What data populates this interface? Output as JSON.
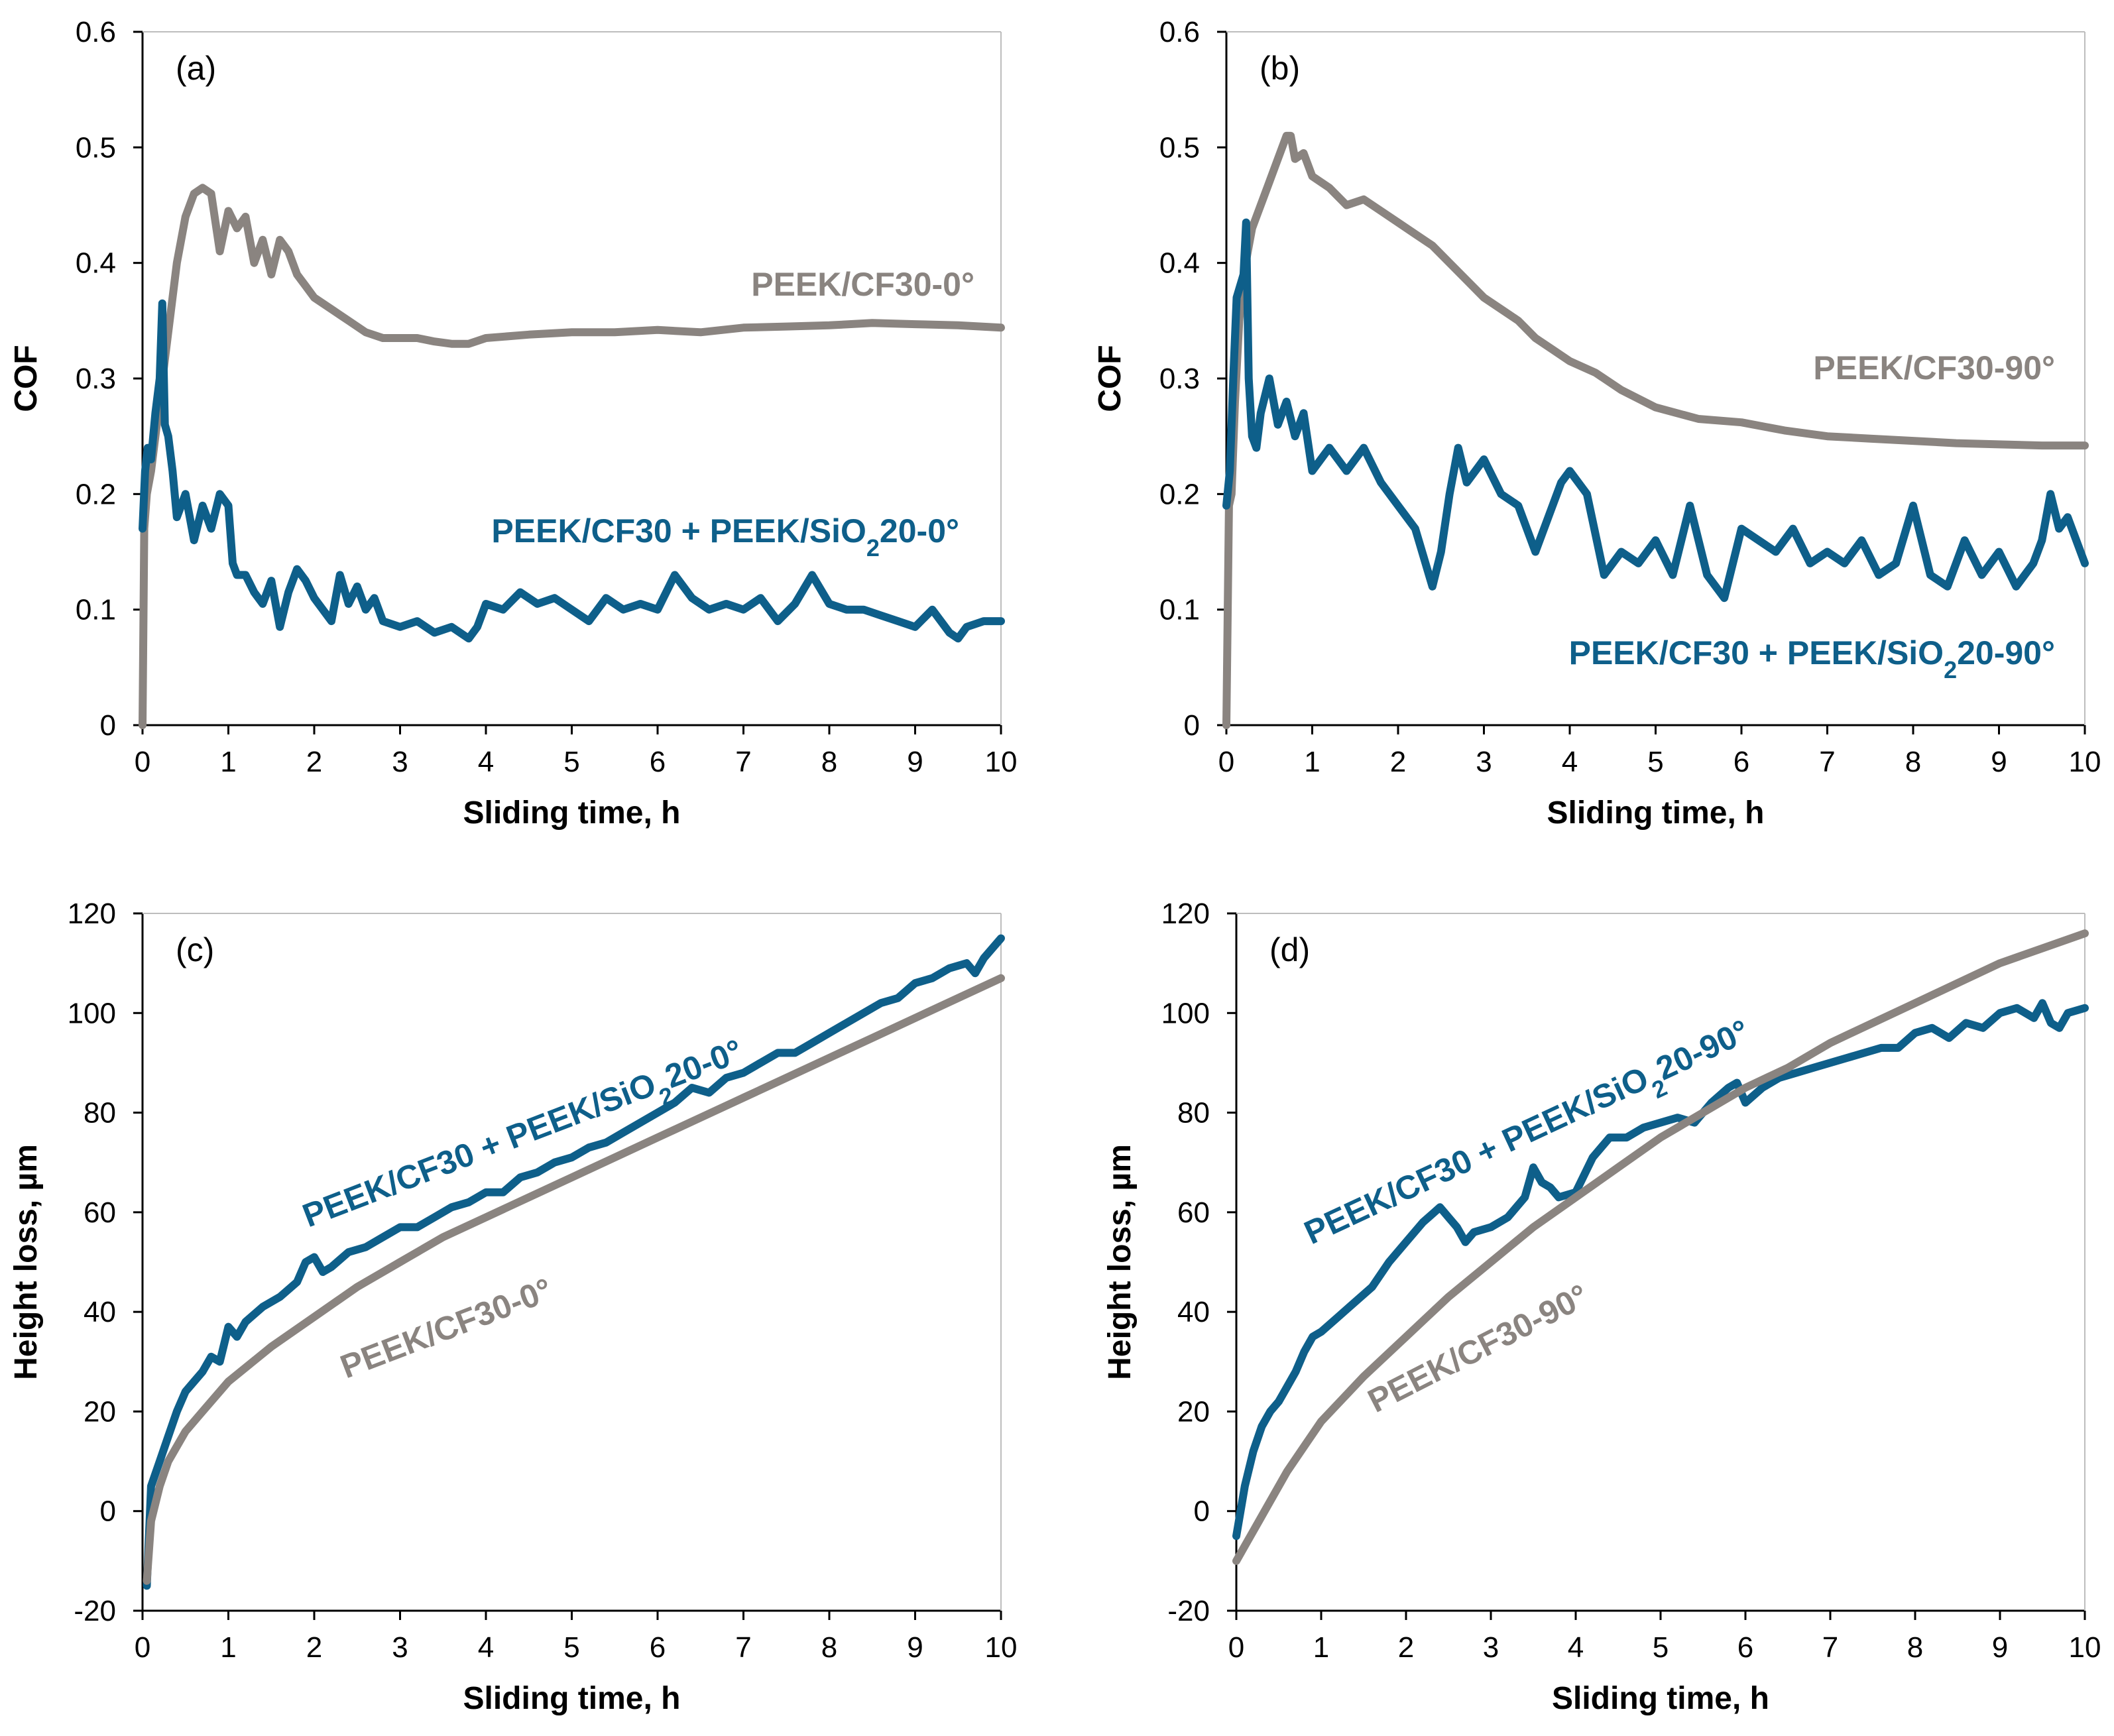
{
  "chart_data": [
    {
      "type": "line",
      "panel_label": "(a)",
      "xlabel": "Sliding time, h",
      "ylabel": "COF",
      "xlim": [
        0,
        10
      ],
      "ylim": [
        0,
        0.6
      ],
      "xticks": [
        0,
        1,
        2,
        3,
        4,
        5,
        6,
        7,
        8,
        9,
        10
      ],
      "yticks": [
        0,
        0.1,
        0.2,
        0.3,
        0.4,
        0.5,
        0.6
      ],
      "xtick_labels": [
        "0",
        "1",
        "2",
        "3",
        "4",
        "5",
        "6",
        "7",
        "8",
        "9",
        "10"
      ],
      "ytick_labels": [
        "0",
        "0.1",
        "0.2",
        "0.3",
        "0.4",
        "0.5",
        "0.6"
      ],
      "grid": false,
      "series": [
        {
          "name": "PEEK/CF30-0°",
          "label_parts": [
            {
              "text": "PEEK/CF30-0°"
            }
          ],
          "color": "#8a8480",
          "x": [
            0,
            0.02,
            0.05,
            0.1,
            0.15,
            0.2,
            0.3,
            0.4,
            0.5,
            0.6,
            0.7,
            0.8,
            0.9,
            1.0,
            1.1,
            1.2,
            1.3,
            1.4,
            1.5,
            1.6,
            1.7,
            1.8,
            1.9,
            2.0,
            2.2,
            2.4,
            2.6,
            2.8,
            3.0,
            3.2,
            3.4,
            3.6,
            3.8,
            4.0,
            4.5,
            5.0,
            5.5,
            6.0,
            6.5,
            7.0,
            7.5,
            8.0,
            8.5,
            9.0,
            9.5,
            10.0
          ],
          "y": [
            0.0,
            0.17,
            0.2,
            0.22,
            0.25,
            0.28,
            0.34,
            0.4,
            0.44,
            0.46,
            0.465,
            0.46,
            0.41,
            0.445,
            0.43,
            0.44,
            0.4,
            0.42,
            0.39,
            0.42,
            0.41,
            0.39,
            0.38,
            0.37,
            0.36,
            0.35,
            0.34,
            0.335,
            0.335,
            0.335,
            0.332,
            0.33,
            0.33,
            0.335,
            0.338,
            0.34,
            0.34,
            0.342,
            0.34,
            0.344,
            0.345,
            0.346,
            0.348,
            0.347,
            0.346,
            0.344
          ]
        },
        {
          "name": "PEEK/CF30 + PEEK/SiO2 20-0°",
          "label_parts": [
            {
              "text": "PEEK/CF30 + PEEK/SiO"
            },
            {
              "text": "2",
              "sub": true
            },
            {
              "text": "20-0°"
            }
          ],
          "color": "#0e5f8a",
          "x": [
            0,
            0.03,
            0.06,
            0.1,
            0.15,
            0.2,
            0.23,
            0.26,
            0.3,
            0.35,
            0.4,
            0.5,
            0.6,
            0.7,
            0.8,
            0.9,
            1.0,
            1.05,
            1.1,
            1.2,
            1.3,
            1.4,
            1.5,
            1.6,
            1.7,
            1.8,
            1.9,
            2.0,
            2.1,
            2.2,
            2.3,
            2.4,
            2.5,
            2.6,
            2.7,
            2.8,
            3.0,
            3.2,
            3.4,
            3.6,
            3.8,
            3.9,
            4.0,
            4.2,
            4.4,
            4.6,
            4.8,
            5.0,
            5.2,
            5.4,
            5.6,
            5.8,
            6.0,
            6.2,
            6.4,
            6.6,
            6.8,
            7.0,
            7.2,
            7.4,
            7.6,
            7.8,
            8.0,
            8.2,
            8.4,
            8.6,
            8.8,
            9.0,
            9.2,
            9.4,
            9.5,
            9.6,
            9.8,
            10.0
          ],
          "y": [
            0.17,
            0.22,
            0.24,
            0.23,
            0.27,
            0.3,
            0.365,
            0.26,
            0.25,
            0.22,
            0.18,
            0.2,
            0.16,
            0.19,
            0.17,
            0.2,
            0.19,
            0.14,
            0.13,
            0.13,
            0.115,
            0.105,
            0.125,
            0.085,
            0.115,
            0.135,
            0.125,
            0.11,
            0.1,
            0.09,
            0.13,
            0.105,
            0.12,
            0.1,
            0.11,
            0.09,
            0.085,
            0.09,
            0.08,
            0.085,
            0.075,
            0.085,
            0.105,
            0.1,
            0.115,
            0.105,
            0.11,
            0.1,
            0.09,
            0.11,
            0.1,
            0.105,
            0.1,
            0.13,
            0.11,
            0.1,
            0.105,
            0.1,
            0.11,
            0.09,
            0.105,
            0.13,
            0.105,
            0.1,
            0.1,
            0.095,
            0.09,
            0.085,
            0.1,
            0.08,
            0.075,
            0.085,
            0.09,
            0.09
          ]
        }
      ]
    },
    {
      "type": "line",
      "panel_label": "(b)",
      "xlabel": "Sliding time, h",
      "ylabel": "COF",
      "xlim": [
        0,
        10
      ],
      "ylim": [
        0,
        0.6
      ],
      "xticks": [
        0,
        1,
        2,
        3,
        4,
        5,
        6,
        7,
        8,
        9,
        10
      ],
      "yticks": [
        0,
        0.1,
        0.2,
        0.3,
        0.4,
        0.5,
        0.6
      ],
      "xtick_labels": [
        "0",
        "1",
        "2",
        "3",
        "4",
        "5",
        "6",
        "7",
        "8",
        "9",
        "10"
      ],
      "ytick_labels": [
        "0",
        "0.1",
        "0.2",
        "0.3",
        "0.4",
        "0.5",
        "0.6"
      ],
      "grid": false,
      "series": [
        {
          "name": "PEEK/CF30-90°",
          "label_parts": [
            {
              "text": "PEEK/CF30-90°"
            }
          ],
          "color": "#8a8480",
          "x": [
            0,
            0.03,
            0.06,
            0.1,
            0.15,
            0.2,
            0.3,
            0.4,
            0.5,
            0.6,
            0.7,
            0.75,
            0.8,
            0.9,
            1.0,
            1.2,
            1.4,
            1.6,
            1.8,
            2.0,
            2.2,
            2.4,
            2.6,
            2.8,
            3.0,
            3.2,
            3.4,
            3.6,
            3.8,
            4.0,
            4.3,
            4.6,
            5.0,
            5.5,
            6.0,
            6.5,
            7.0,
            7.5,
            8.0,
            8.5,
            9.0,
            9.5,
            10.0
          ],
          "y": [
            0.0,
            0.19,
            0.2,
            0.28,
            0.35,
            0.39,
            0.43,
            0.45,
            0.47,
            0.49,
            0.51,
            0.51,
            0.49,
            0.495,
            0.475,
            0.465,
            0.45,
            0.455,
            0.445,
            0.435,
            0.425,
            0.415,
            0.4,
            0.385,
            0.37,
            0.36,
            0.35,
            0.335,
            0.325,
            0.315,
            0.305,
            0.29,
            0.275,
            0.265,
            0.262,
            0.255,
            0.25,
            0.248,
            0.246,
            0.244,
            0.243,
            0.242,
            0.242
          ]
        },
        {
          "name": "PEEK/CF30 + PEEK/SiO2 20-90°",
          "label_parts": [
            {
              "text": "PEEK/CF30 + PEEK/SiO"
            },
            {
              "text": "2",
              "sub": true
            },
            {
              "text": "20-90°"
            }
          ],
          "color": "#0e5f8a",
          "x": [
            0,
            0.04,
            0.08,
            0.12,
            0.16,
            0.2,
            0.23,
            0.26,
            0.3,
            0.35,
            0.4,
            0.5,
            0.6,
            0.7,
            0.8,
            0.9,
            1.0,
            1.2,
            1.4,
            1.6,
            1.8,
            2.0,
            2.2,
            2.4,
            2.5,
            2.6,
            2.7,
            2.8,
            3.0,
            3.2,
            3.4,
            3.6,
            3.8,
            3.9,
            4.0,
            4.2,
            4.4,
            4.6,
            4.8,
            5.0,
            5.2,
            5.4,
            5.6,
            5.8,
            6.0,
            6.2,
            6.4,
            6.6,
            6.8,
            7.0,
            7.2,
            7.4,
            7.6,
            7.8,
            8.0,
            8.2,
            8.4,
            8.6,
            8.8,
            9.0,
            9.2,
            9.4,
            9.5,
            9.6,
            9.7,
            9.8,
            10.0
          ],
          "y": [
            0.19,
            0.22,
            0.3,
            0.37,
            0.38,
            0.39,
            0.435,
            0.3,
            0.25,
            0.24,
            0.27,
            0.3,
            0.26,
            0.28,
            0.25,
            0.27,
            0.22,
            0.24,
            0.22,
            0.24,
            0.21,
            0.19,
            0.17,
            0.12,
            0.15,
            0.2,
            0.24,
            0.21,
            0.23,
            0.2,
            0.19,
            0.15,
            0.19,
            0.21,
            0.22,
            0.2,
            0.13,
            0.15,
            0.14,
            0.16,
            0.13,
            0.19,
            0.13,
            0.11,
            0.17,
            0.16,
            0.15,
            0.17,
            0.14,
            0.15,
            0.14,
            0.16,
            0.13,
            0.14,
            0.19,
            0.13,
            0.12,
            0.16,
            0.13,
            0.15,
            0.12,
            0.14,
            0.16,
            0.2,
            0.17,
            0.18,
            0.14
          ]
        }
      ]
    },
    {
      "type": "line",
      "panel_label": "(c)",
      "xlabel": "Sliding time, h",
      "ylabel": "Height loss, µm",
      "xlim": [
        0,
        10
      ],
      "ylim": [
        -20,
        120
      ],
      "xticks": [
        0,
        1,
        2,
        3,
        4,
        5,
        6,
        7,
        8,
        9,
        10
      ],
      "yticks": [
        -20,
        0,
        20,
        40,
        60,
        80,
        100,
        120
      ],
      "xtick_labels": [
        "0",
        "1",
        "2",
        "3",
        "4",
        "5",
        "6",
        "7",
        "8",
        "9",
        "10"
      ],
      "ytick_labels": [
        "-20",
        "0",
        "20",
        "40",
        "60",
        "80",
        "100",
        "120"
      ],
      "grid": false,
      "series": [
        {
          "name": "PEEK/CF30 + PEEK/SiO2 20-0°",
          "label_parts": [
            {
              "text": "PEEK/CF30 + PEEK/SiO"
            },
            {
              "text": "2",
              "sub": true
            },
            {
              "text": "20-0°"
            }
          ],
          "color": "#0e5f8a",
          "x": [
            0.05,
            0.1,
            0.2,
            0.3,
            0.4,
            0.5,
            0.6,
            0.7,
            0.8,
            0.9,
            1.0,
            1.1,
            1.2,
            1.4,
            1.6,
            1.8,
            1.9,
            2.0,
            2.1,
            2.2,
            2.4,
            2.6,
            2.8,
            3.0,
            3.2,
            3.4,
            3.6,
            3.8,
            4.0,
            4.2,
            4.4,
            4.6,
            4.8,
            5.0,
            5.2,
            5.4,
            5.6,
            5.8,
            6.0,
            6.2,
            6.4,
            6.6,
            6.8,
            7.0,
            7.2,
            7.4,
            7.6,
            7.8,
            8.0,
            8.2,
            8.4,
            8.6,
            8.8,
            9.0,
            9.2,
            9.4,
            9.6,
            9.7,
            9.8,
            10.0
          ],
          "y": [
            -15,
            5,
            10,
            15,
            20,
            24,
            26,
            28,
            31,
            30,
            37,
            35,
            38,
            41,
            43,
            46,
            50,
            51,
            48,
            49,
            52,
            53,
            55,
            57,
            57,
            59,
            61,
            62,
            64,
            64,
            67,
            68,
            70,
            71,
            73,
            74,
            76,
            78,
            80,
            82,
            85,
            84,
            87,
            88,
            90,
            92,
            92,
            94,
            96,
            98,
            100,
            102,
            103,
            106,
            107,
            109,
            110,
            108,
            111,
            115
          ]
        },
        {
          "name": "PEEK/CF30-0°",
          "label_parts": [
            {
              "text": "PEEK/CF30-0°"
            }
          ],
          "color": "#8a8480",
          "x": [
            0.05,
            0.1,
            0.2,
            0.3,
            0.5,
            0.7,
            1.0,
            1.5,
            2.0,
            2.5,
            3.0,
            3.5,
            4.0,
            4.5,
            5.0,
            5.5,
            6.0,
            6.5,
            7.0,
            7.5,
            8.0,
            8.5,
            9.0,
            9.5,
            10.0
          ],
          "y": [
            -14,
            -2,
            5,
            10,
            16,
            20,
            26,
            33,
            39,
            45,
            50,
            55,
            59,
            63,
            67,
            71,
            75,
            79,
            83,
            87,
            91,
            95,
            99,
            103,
            107
          ]
        }
      ]
    },
    {
      "type": "line",
      "panel_label": "(d)",
      "xlabel": "Sliding time, h",
      "ylabel": "Height loss, µm",
      "xlim": [
        0,
        10
      ],
      "ylim": [
        -20,
        120
      ],
      "xticks": [
        0,
        1,
        2,
        3,
        4,
        5,
        6,
        7,
        8,
        9,
        10
      ],
      "yticks": [
        -20,
        0,
        20,
        40,
        60,
        80,
        100,
        120
      ],
      "xtick_labels": [
        "0",
        "1",
        "2",
        "3",
        "4",
        "5",
        "6",
        "7",
        "8",
        "9",
        "10"
      ],
      "ytick_labels": [
        "-20",
        "0",
        "20",
        "40",
        "60",
        "80",
        "100",
        "120"
      ],
      "grid": false,
      "series": [
        {
          "name": "PEEK/CF30 + PEEK/SiO2 20-90°",
          "label_parts": [
            {
              "text": "PEEK/CF30 + PEEK/SiO"
            },
            {
              "text": "2",
              "sub": true
            },
            {
              "text": "20-90°"
            }
          ],
          "color": "#0e5f8a",
          "x": [
            0,
            0.1,
            0.2,
            0.3,
            0.4,
            0.5,
            0.6,
            0.7,
            0.8,
            0.9,
            1.0,
            1.2,
            1.4,
            1.6,
            1.8,
            2.0,
            2.2,
            2.4,
            2.5,
            2.6,
            2.7,
            2.8,
            3.0,
            3.2,
            3.4,
            3.5,
            3.6,
            3.7,
            3.8,
            4.0,
            4.2,
            4.4,
            4.6,
            4.8,
            5.0,
            5.2,
            5.4,
            5.6,
            5.8,
            5.9,
            6.0,
            6.2,
            6.4,
            6.6,
            6.8,
            7.0,
            7.2,
            7.4,
            7.6,
            7.8,
            8.0,
            8.2,
            8.4,
            8.6,
            8.8,
            9.0,
            9.2,
            9.4,
            9.5,
            9.6,
            9.7,
            9.8,
            10.0
          ],
          "y": [
            -5,
            5,
            12,
            17,
            20,
            22,
            25,
            28,
            32,
            35,
            36,
            39,
            42,
            45,
            50,
            54,
            58,
            61,
            59,
            57,
            54,
            56,
            57,
            59,
            63,
            69,
            66,
            65,
            63,
            64,
            71,
            75,
            75,
            77,
            78,
            79,
            78,
            82,
            85,
            86,
            82,
            85,
            87,
            88,
            89,
            90,
            91,
            92,
            93,
            93,
            96,
            97,
            95,
            98,
            97,
            100,
            101,
            99,
            102,
            98,
            97,
            100,
            101
          ]
        },
        {
          "name": "PEEK/CF30-90°",
          "label_parts": [
            {
              "text": "PEEK/CF30-90°"
            }
          ],
          "color": "#8a8480",
          "x": [
            0,
            0.1,
            0.2,
            0.4,
            0.6,
            0.8,
            1.0,
            1.5,
            2.0,
            2.5,
            3.0,
            3.5,
            4.0,
            4.5,
            5.0,
            5.5,
            6.0,
            6.5,
            7.0,
            7.5,
            8.0,
            8.5,
            9.0,
            9.5,
            10.0
          ],
          "y": [
            -10,
            -7,
            -4,
            2,
            8,
            13,
            18,
            27,
            35,
            43,
            50,
            57,
            63,
            69,
            75,
            80,
            85,
            89,
            94,
            98,
            102,
            106,
            110,
            113,
            116
          ]
        }
      ]
    }
  ]
}
